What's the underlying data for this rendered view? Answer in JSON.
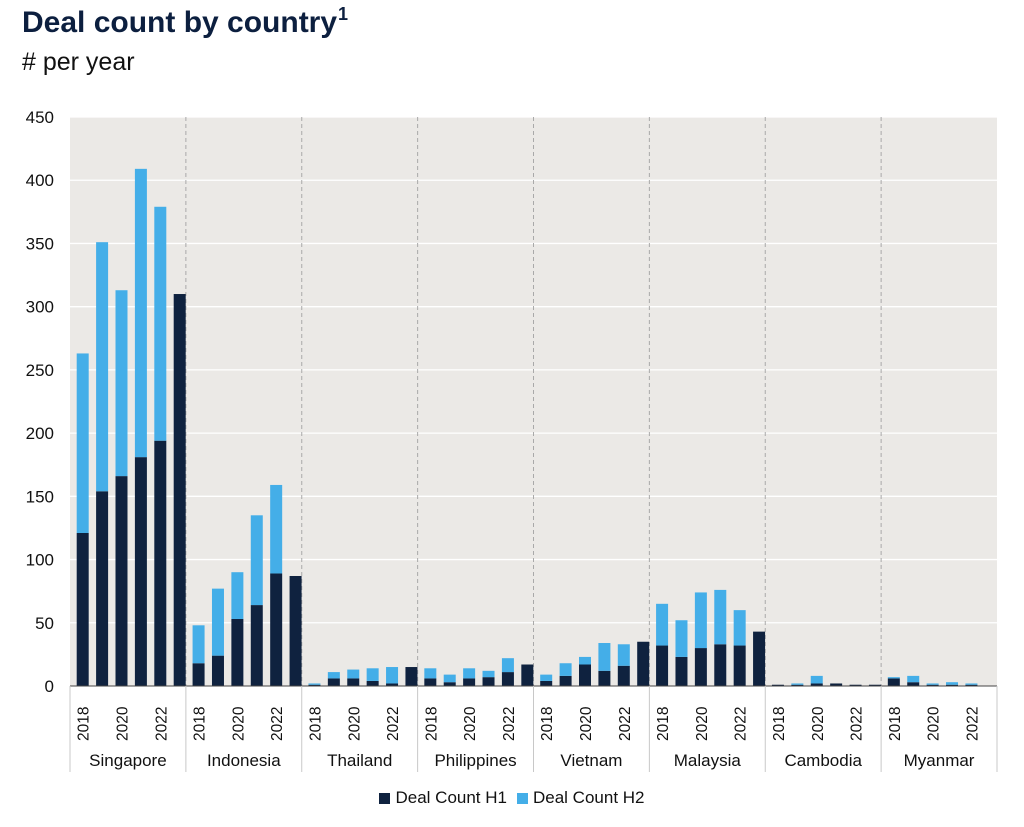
{
  "header": {
    "title": "Deal count by country",
    "title_footnote": "1",
    "subtitle": "# per year"
  },
  "colors": {
    "h1": "#0f223f",
    "h2": "#44aee8",
    "plot_bg": "#ebe9e6",
    "grid": "#ffffff"
  },
  "chart_data": {
    "type": "bar",
    "stacked": true,
    "ylim": [
      0,
      450
    ],
    "yticks": [
      0,
      50,
      100,
      150,
      200,
      250,
      300,
      350,
      400,
      450
    ],
    "years": [
      "2018",
      "2019",
      "2020",
      "2021",
      "2022",
      "2023"
    ],
    "year_tick_labels": [
      "2018",
      "2020",
      "2022"
    ],
    "groups": [
      {
        "country": "Singapore",
        "h1": [
          121,
          154,
          166,
          181,
          194,
          310
        ],
        "h2": [
          142,
          197,
          147,
          228,
          185,
          0
        ]
      },
      {
        "country": "Indonesia",
        "h1": [
          18,
          24,
          53,
          64,
          89,
          87
        ],
        "h2": [
          30,
          53,
          37,
          71,
          70,
          0
        ]
      },
      {
        "country": "Thailand",
        "h1": [
          1,
          6,
          6,
          4,
          2,
          15
        ],
        "h2": [
          1,
          5,
          7,
          10,
          13,
          0
        ]
      },
      {
        "country": "Philippines",
        "h1": [
          6,
          3,
          6,
          7,
          11,
          17
        ],
        "h2": [
          8,
          6,
          8,
          5,
          11,
          0
        ]
      },
      {
        "country": "Vietnam",
        "h1": [
          4,
          8,
          17,
          12,
          16,
          35
        ],
        "h2": [
          5,
          10,
          6,
          22,
          17,
          0
        ]
      },
      {
        "country": "Malaysia",
        "h1": [
          32,
          23,
          30,
          33,
          32,
          43
        ],
        "h2": [
          33,
          29,
          44,
          43,
          28,
          0
        ]
      },
      {
        "country": "Cambodia",
        "h1": [
          1,
          1,
          2,
          2,
          1,
          1
        ],
        "h2": [
          0,
          1,
          6,
          0,
          0,
          0
        ]
      },
      {
        "country": "Myanmar",
        "h1": [
          6,
          3,
          1,
          1,
          1,
          0
        ],
        "h2": [
          1,
          5,
          1,
          2,
          1,
          0
        ]
      }
    ],
    "series": [
      {
        "name": "Deal Count H1"
      },
      {
        "name": "Deal Count H2"
      }
    ],
    "legend_position": "bottom-center",
    "grid": true
  }
}
